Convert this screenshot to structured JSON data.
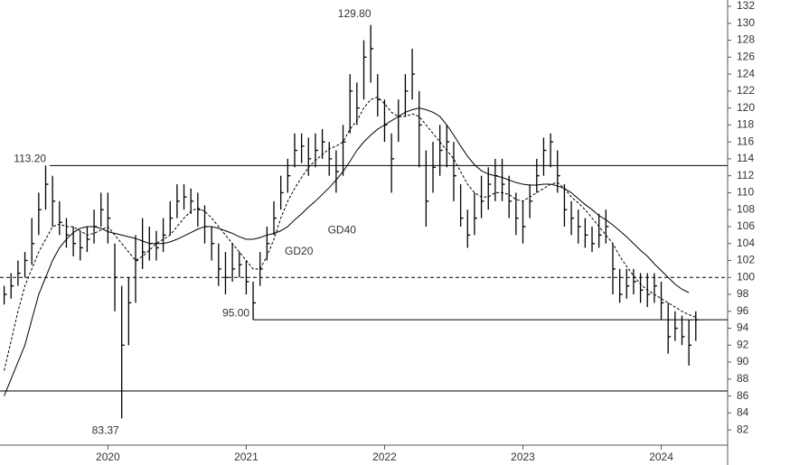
{
  "chart_data": {
    "type": "ohlc",
    "x": [
      2019.25,
      2019.3,
      2019.35,
      2019.4,
      2019.45,
      2019.5,
      2019.55,
      2019.6,
      2019.65,
      2019.7,
      2019.75,
      2019.8,
      2019.85,
      2019.9,
      2019.95,
      2020.0,
      2020.05,
      2020.1,
      2020.15,
      2020.2,
      2020.25,
      2020.3,
      2020.35,
      2020.4,
      2020.45,
      2020.5,
      2020.55,
      2020.6,
      2020.65,
      2020.7,
      2020.75,
      2020.8,
      2020.85,
      2020.9,
      2020.95,
      2021.0,
      2021.05,
      2021.1,
      2021.15,
      2021.2,
      2021.25,
      2021.3,
      2021.35,
      2021.4,
      2021.45,
      2021.5,
      2021.55,
      2021.6,
      2021.65,
      2021.7,
      2021.75,
      2021.8,
      2021.85,
      2021.9,
      2021.95,
      2022.0,
      2022.05,
      2022.1,
      2022.15,
      2022.2,
      2022.25,
      2022.3,
      2022.35,
      2022.4,
      2022.45,
      2022.5,
      2022.55,
      2022.6,
      2022.65,
      2022.7,
      2022.75,
      2022.8,
      2022.85,
      2022.9,
      2022.95,
      2023.0,
      2023.05,
      2023.1,
      2023.15,
      2023.2,
      2023.25,
      2023.3,
      2023.35,
      2023.4,
      2023.45,
      2023.5,
      2023.55,
      2023.6,
      2023.65,
      2023.7,
      2023.75,
      2023.8,
      2023.85,
      2023.9,
      2023.95,
      2024.0,
      2024.05,
      2024.1,
      2024.15,
      2024.2,
      2024.25
    ],
    "high": [
      99,
      100.5,
      102,
      103,
      107,
      110,
      113.2,
      112,
      109,
      107,
      106,
      105.5,
      106,
      108,
      110,
      110,
      104,
      99,
      100,
      105,
      107,
      106,
      105.5,
      107,
      109,
      111,
      111,
      110.5,
      110,
      108.5,
      106,
      104,
      103,
      104,
      103,
      102,
      99.5,
      103,
      106,
      109,
      112,
      114,
      117,
      117,
      116.5,
      117,
      117.5,
      116,
      115,
      118,
      124,
      123,
      128,
      129.8,
      124,
      121,
      117,
      121,
      124,
      127,
      122,
      115,
      116,
      118,
      118,
      116,
      111,
      108,
      110,
      112,
      113,
      114,
      114,
      112,
      110,
      109,
      111,
      114,
      116.5,
      117,
      115,
      111,
      109,
      108,
      107,
      106,
      107.5,
      108,
      104,
      101,
      101,
      101,
      100.5,
      100.5,
      100.5,
      99.5,
      97,
      96,
      95.5,
      95,
      96
    ],
    "low": [
      96.8,
      97.5,
      99,
      100,
      101.5,
      105,
      108,
      106,
      105,
      103.5,
      102.5,
      102,
      103,
      104,
      106,
      104,
      96,
      83.37,
      92,
      97,
      101,
      102,
      102,
      103,
      105,
      107,
      108,
      107.5,
      106,
      104,
      102,
      99,
      98,
      99.5,
      100,
      98,
      95,
      99,
      102,
      105,
      108,
      110,
      113,
      113.5,
      112,
      113,
      114,
      112,
      110,
      112,
      117,
      118,
      121,
      123,
      119,
      116,
      110,
      116,
      119,
      121,
      113,
      106,
      110,
      112,
      113,
      109,
      106,
      103.5,
      105,
      107,
      108,
      109,
      109,
      107,
      105,
      104,
      107,
      110,
      112,
      113,
      110,
      106,
      105,
      104,
      103.5,
      103,
      103.5,
      104,
      98,
      97,
      97.5,
      98,
      97,
      96.5,
      97,
      95,
      91,
      92.5,
      92,
      89.6,
      92.5
    ],
    "close": [
      98,
      99,
      100.5,
      102,
      104,
      108,
      111,
      109,
      106.5,
      105,
      104,
      103.5,
      104.5,
      106,
      108,
      107,
      100,
      92,
      97,
      102,
      103,
      104,
      103.5,
      105,
      107,
      109,
      109.5,
      109,
      108,
      106,
      104,
      101,
      100,
      101,
      101.5,
      99.5,
      97,
      101,
      104,
      107,
      110,
      112,
      115,
      115.5,
      114,
      115,
      116,
      114,
      112.5,
      116,
      122,
      120,
      126,
      127,
      121,
      118,
      114,
      119,
      122,
      124,
      118,
      109,
      113,
      115,
      116,
      112,
      107,
      105,
      107,
      109,
      111,
      112,
      111,
      109,
      107,
      106,
      109,
      112,
      115,
      116,
      112,
      108,
      107,
      106,
      105,
      104,
      105,
      106,
      101,
      98,
      99,
      99.5,
      98.5,
      98,
      99,
      97,
      93,
      94,
      93,
      92,
      95
    ],
    "color": "#000000",
    "series": [
      {
        "name": "GD20",
        "color": "#000000",
        "style": "dashed",
        "values": [
          89,
          92.5,
          96,
          99,
          101,
          103,
          104.5,
          106,
          106.3,
          106,
          106,
          105.5,
          105,
          105.2,
          105.6,
          106,
          105,
          104,
          103,
          102,
          102.5,
          103.2,
          104,
          104.5,
          105,
          106,
          107,
          107.8,
          108.2,
          107.8,
          107,
          106,
          105,
          104,
          103,
          102,
          101,
          101,
          102.5,
          104.5,
          107,
          109,
          110.5,
          111.8,
          113,
          113.8,
          114.5,
          115.2,
          115.5,
          116,
          117.5,
          118.5,
          120,
          121,
          121.3,
          120.5,
          119.5,
          119,
          119,
          119.3,
          119,
          118,
          117,
          116,
          115,
          114,
          112.5,
          111,
          110,
          109.5,
          109.5,
          110,
          110,
          109.8,
          109.2,
          109,
          109.5,
          110,
          110.5,
          111,
          111.2,
          110.5,
          109.5,
          108.8,
          108,
          107,
          106,
          105,
          104,
          102.5,
          101.3,
          100.2,
          99.2,
          98.5,
          98,
          97.5,
          97,
          96.5,
          96,
          95.6,
          95.3
        ]
      },
      {
        "name": "GD40",
        "color": "#000000",
        "style": "solid",
        "values": [
          86,
          88,
          90,
          92,
          95,
          98,
          100,
          102,
          103.5,
          104.5,
          105.3,
          105.8,
          106,
          106,
          105.8,
          105.4,
          105.2,
          105,
          104.8,
          104.6,
          104.3,
          104,
          104,
          104,
          104.2,
          104.5,
          104.9,
          105.3,
          105.7,
          106,
          106,
          105.8,
          105.5,
          105.2,
          104.8,
          104.5,
          104.5,
          104.7,
          105,
          105.2,
          105.5,
          106,
          106.8,
          107.5,
          108.3,
          109,
          109.8,
          110.6,
          111.5,
          112.5,
          113.7,
          115,
          116,
          116.8,
          117.5,
          118,
          118.5,
          119,
          119.5,
          119.8,
          120,
          119.8,
          119.5,
          119,
          118,
          116.8,
          115.5,
          114.3,
          113.3,
          112.6,
          112.2,
          112,
          111.8,
          111.5,
          111.2,
          111,
          110.9,
          110.9,
          111,
          111,
          110.8,
          110.5,
          110,
          109.3,
          108.6,
          108,
          107.3,
          106.8,
          106.2,
          105.5,
          104.8,
          104,
          103.2,
          102.5,
          101.6,
          100.8,
          100,
          99.2,
          98.6,
          98.2,
          null
        ]
      }
    ],
    "hlines": [
      {
        "value": 113.2,
        "label": "113.20",
        "x0": 2019.58,
        "style": "solid"
      },
      {
        "value": 100,
        "style": "dashed"
      },
      {
        "value": 95,
        "label": "95.00",
        "x0": 2021.05,
        "style": "solid"
      },
      {
        "value": 86.6,
        "style": "solid"
      }
    ],
    "annotations": [
      {
        "label": "129.80",
        "value": 129.8,
        "x": 2021.9
      },
      {
        "label": "83.37",
        "value": 83.37,
        "x": 2020.1
      }
    ],
    "xlim": [
      2019.22,
      2024.48
    ],
    "xticks": [
      2020,
      2021,
      2022,
      2023,
      2024
    ],
    "ylim": [
      80.2,
      132.75
    ],
    "yticks": [
      82,
      84,
      86,
      88,
      90,
      92,
      94,
      96,
      98,
      100,
      102,
      104,
      106,
      108,
      110,
      112,
      114,
      116,
      118,
      120,
      122,
      124,
      126,
      128,
      130,
      132
    ],
    "y_axis_side": "right"
  }
}
